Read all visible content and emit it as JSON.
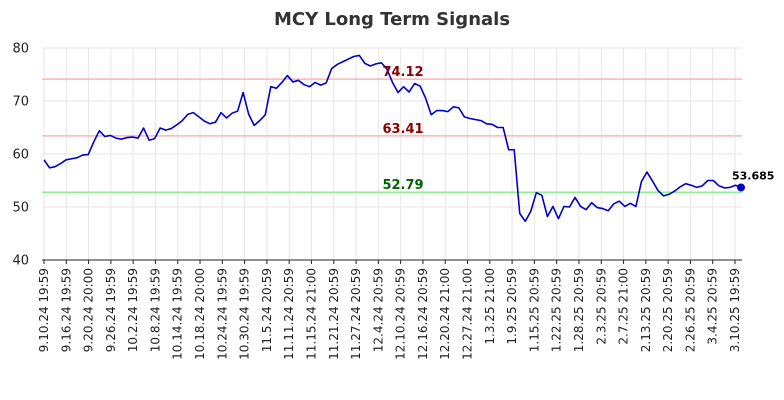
{
  "chart_data": {
    "type": "line",
    "title": "MCY Long Term Signals",
    "xlabel": "",
    "ylabel": "",
    "ylim": [
      40,
      80
    ],
    "yticks": [
      40,
      50,
      60,
      70,
      80
    ],
    "grid": true,
    "colors": {
      "line": "#0000cc",
      "upper_line": "#ffb3b3",
      "middle_line": "#ffb3b3",
      "lower_line": "#90ee90",
      "upper_label": "#8b0000",
      "middle_label": "#8b0000",
      "lower_label": "#006400"
    },
    "reference_lines": [
      {
        "key": "upper",
        "value": 74.12,
        "label": "74.12"
      },
      {
        "key": "middle",
        "value": 63.41,
        "label": "63.41"
      },
      {
        "key": "lower",
        "value": 52.79,
        "label": "52.79"
      }
    ],
    "last_value_label": "53.685",
    "x_tick_labels": [
      "9.10.24 19:59",
      "9.16.24 19:59",
      "9.20.24 20:00",
      "9.26.24 19:59",
      "10.2.24 19:59",
      "10.8.24 19:59",
      "10.14.24 19:59",
      "10.18.24 20:00",
      "10.24.24 19:59",
      "10.30.24 19:59",
      "11.5.24 20:59",
      "11.11.24 20:59",
      "11.15.24 21:00",
      "11.21.24 20:59",
      "11.27.24 20:59",
      "12.4.24 20:59",
      "12.10.24 20:59",
      "12.16.24 20:59",
      "12.20.24 21:00",
      "12.27.24 21:00",
      "1.3.25 21:00",
      "1.9.25 20:59",
      "1.15.25 20:59",
      "1.22.25 20:59",
      "1.28.25 20:59",
      "2.3.25 20:59",
      "2.7.25 21:00",
      "2.13.25 20:59",
      "2.20.25 20:59",
      "2.26.25 20:59",
      "3.4.25 20:59",
      "3.10.25 19:59"
    ],
    "values": [
      58.9,
      57.4,
      57.6,
      58.2,
      58.9,
      59.1,
      59.3,
      59.8,
      59.9,
      62.3,
      64.4,
      63.3,
      63.5,
      63.0,
      62.8,
      63.1,
      63.2,
      63.0,
      64.9,
      62.6,
      62.9,
      64.9,
      64.5,
      64.8,
      65.5,
      66.3,
      67.5,
      67.8,
      67.0,
      66.2,
      65.7,
      66.0,
      67.8,
      66.8,
      67.7,
      68.1,
      71.6,
      67.5,
      65.4,
      66.3,
      67.4,
      72.7,
      72.4,
      73.5,
      74.8,
      73.6,
      73.9,
      73.1,
      72.7,
      73.5,
      73.0,
      73.4,
      76.1,
      76.9,
      77.4,
      77.9,
      78.4,
      78.6,
      77.1,
      76.6,
      77.0,
      77.2,
      76.0,
      73.5,
      71.6,
      72.7,
      71.7,
      73.3,
      72.8,
      70.5,
      67.4,
      68.2,
      68.2,
      68.0,
      68.9,
      68.7,
      67.0,
      66.7,
      66.5,
      66.3,
      65.7,
      65.6,
      65.0,
      65.0,
      60.8,
      60.8,
      48.8,
      47.3,
      49.2,
      52.7,
      52.2,
      48.2,
      50.1,
      47.8,
      50.1,
      50.0,
      51.8,
      50.1,
      49.5,
      50.8,
      49.9,
      49.7,
      49.3,
      50.6,
      51.1,
      50.1,
      50.7,
      50.1,
      54.8,
      56.6,
      54.9,
      53.1,
      52.1,
      52.4,
      53.0,
      53.8,
      54.4,
      54.1,
      53.7,
      54.0,
      55.0,
      55.0,
      54.0,
      53.6,
      53.7,
      54.1,
      53.685
    ]
  }
}
